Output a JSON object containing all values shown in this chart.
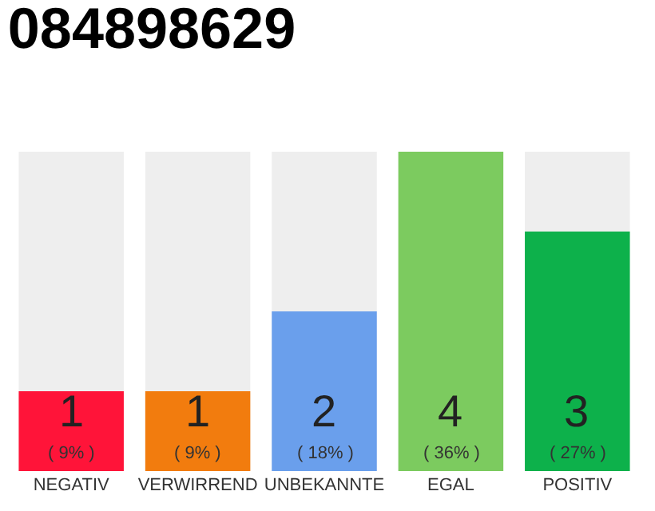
{
  "chart_data": {
    "type": "bar",
    "title": "084898629",
    "categories": [
      "NEGATIV",
      "VERWIRREND",
      "UNBEKANNTE",
      "EGAL",
      "POSITIV"
    ],
    "values": [
      1,
      1,
      2,
      4,
      3
    ],
    "colors": [
      "#ff1439",
      "#f27c0e",
      "#6a9fec",
      "#7ccb5f",
      "#0db14b"
    ],
    "ylim": [
      0,
      4
    ],
    "data_labels": true,
    "tick_labels": "x",
    "grid": false,
    "annotations": [
      "( 9% )",
      "( 9% )",
      "( 18% )",
      "( 36% )",
      "( 27% )"
    ]
  }
}
